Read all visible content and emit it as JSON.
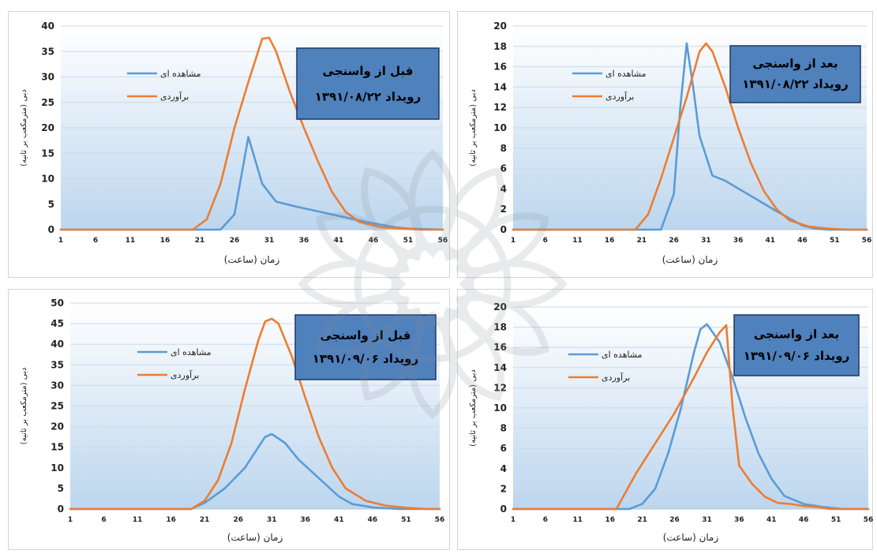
{
  "colors": {
    "observed": "#5b9bd5",
    "estimated": "#ed7d31",
    "title_box_fill": "#4f81bd",
    "title_box_border": "#1f3864",
    "plot_top": "#ffffff",
    "plot_bottom": "#bcd6ee",
    "grid": "#ccdaea",
    "axis_text": "#222222",
    "watermark": "#8a9099"
  },
  "chart_data": [
    {
      "type": "line",
      "title_lines": [
        "قبل از واسنجی",
        "رویداد ۱۳۹۱/۰۸/۲۲"
      ],
      "xlabel": "زمان (ساعت)",
      "ylabel": "دبی (مترمکعب بر ثانیه)",
      "x_ticks": [
        "1",
        "6",
        "11",
        "16",
        "21",
        "26",
        "31",
        "36",
        "41",
        "46",
        "51",
        "56"
      ],
      "xlim": [
        1,
        56
      ],
      "y_ticks": [
        "0",
        "5",
        "10",
        "15",
        "20",
        "25",
        "30",
        "35",
        "40"
      ],
      "ylim": [
        0,
        40
      ],
      "legend_position": "top-left",
      "series": [
        {
          "name": "مشاهده ای",
          "color_key": "observed",
          "x": [
            1,
            24,
            26,
            28,
            30,
            32,
            35,
            40,
            45,
            49,
            51,
            56
          ],
          "y": [
            0,
            0,
            3,
            18.2,
            9,
            5.5,
            4.5,
            3,
            1.5,
            0.5,
            0.2,
            0
          ]
        },
        {
          "name": "برآوردی",
          "color_key": "estimated",
          "x": [
            1,
            20,
            22,
            24,
            26,
            28,
            30,
            31,
            32,
            34,
            36,
            38,
            40,
            42,
            44,
            47,
            50,
            53,
            56
          ],
          "y": [
            0,
            0,
            2,
            9,
            20,
            29,
            37.5,
            37.7,
            35,
            27,
            20,
            13.5,
            7.5,
            3.5,
            1.5,
            0.5,
            0.2,
            0,
            0
          ]
        }
      ]
    },
    {
      "type": "line",
      "title_lines": [
        "بعد  از واسنجی",
        "رویداد ۱۳۹۱/۰۸/۲۲"
      ],
      "xlabel": "زمان (ساعت)",
      "ylabel": "دبی (مترمکعب بر ثانیه)",
      "x_ticks": [
        "1",
        "6",
        "11",
        "16",
        "21",
        "26",
        "31",
        "36",
        "41",
        "46",
        "51",
        "56"
      ],
      "xlim": [
        1,
        56
      ],
      "y_ticks": [
        "0",
        "2",
        "4",
        "6",
        "8",
        "10",
        "12",
        "14",
        "16",
        "18",
        "20"
      ],
      "ylim": [
        0,
        20
      ],
      "legend_position": "top-left",
      "series": [
        {
          "name": "مشاهده ای",
          "color_key": "observed",
          "x": [
            1,
            24,
            26,
            27,
            28,
            29,
            30,
            32,
            34,
            38,
            42,
            46,
            48,
            50,
            56
          ],
          "y": [
            0,
            0,
            3.5,
            12,
            18.3,
            14,
            9.2,
            5.3,
            4.8,
            3.3,
            1.8,
            0.4,
            0.1,
            0,
            0
          ]
        },
        {
          "name": "برآوردی",
          "color_key": "estimated",
          "x": [
            1,
            20,
            22,
            24,
            26,
            28,
            30,
            31,
            32,
            34,
            36,
            38,
            40,
            42,
            44,
            47,
            50,
            53,
            56
          ],
          "y": [
            0,
            0,
            1.5,
            5,
            9,
            13,
            17.5,
            18.3,
            17.5,
            14,
            10,
            6.5,
            3.8,
            2,
            0.9,
            0.3,
            0.1,
            0,
            0
          ]
        }
      ]
    },
    {
      "type": "line",
      "title_lines": [
        "قبل از واسنجی",
        "رویداد ۱۳۹۱/۰۹/۰۶"
      ],
      "xlabel": "زمان (ساعت)",
      "ylabel": "دبی (مترمکعب بر ثانیه)",
      "x_ticks": [
        "1",
        "6",
        "11",
        "16",
        "21",
        "26",
        "31",
        "36",
        "41",
        "46",
        "51",
        "56"
      ],
      "xlim": [
        1,
        56
      ],
      "y_ticks": [
        "0",
        "5",
        "10",
        "15",
        "20",
        "25",
        "30",
        "35",
        "40",
        "45",
        "50"
      ],
      "ylim": [
        0,
        50
      ],
      "legend_position": "top-left",
      "series": [
        {
          "name": "مشاهده ای",
          "color_key": "observed",
          "x": [
            1,
            19,
            21,
            24,
            27,
            29,
            30,
            31,
            33,
            35,
            38,
            41,
            43,
            46,
            48,
            50,
            56
          ],
          "y": [
            0,
            0,
            1.5,
            5,
            10,
            15,
            17.5,
            18.2,
            16,
            12,
            7.5,
            3,
            1.2,
            0.4,
            0.2,
            0,
            0
          ]
        },
        {
          "name": "برآوردی",
          "color_key": "estimated",
          "x": [
            1,
            19,
            21,
            23,
            25,
            27,
            29,
            30,
            31,
            32,
            34,
            36,
            38,
            40,
            42,
            45,
            48,
            51,
            54,
            56
          ],
          "y": [
            0,
            0,
            2,
            7,
            16,
            29,
            41,
            45.5,
            46.2,
            45,
            37,
            27,
            17.5,
            10,
            5,
            2,
            0.8,
            0.3,
            0,
            0
          ]
        }
      ]
    },
    {
      "type": "line",
      "title_lines": [
        "بعد از واسنجی",
        "رویداد ۱۳۹۱/۰۹/۰۶"
      ],
      "xlabel": "زمان (ساعت)",
      "ylabel": "دبی (مترمکعب بر ثانیه)",
      "x_ticks": [
        "1",
        "6",
        "11",
        "16",
        "21",
        "26",
        "31",
        "36",
        "41",
        "46",
        "51",
        "56"
      ],
      "xlim": [
        1,
        56
      ],
      "y_ticks": [
        "0",
        "2",
        "4",
        "6",
        "8",
        "10",
        "12",
        "14",
        "16",
        "18",
        "20"
      ],
      "ylim": [
        0,
        20
      ],
      "legend_position": "top-left",
      "series": [
        {
          "name": "مشاهده ای",
          "color_key": "observed",
          "x": [
            1,
            19,
            21,
            23,
            25,
            27,
            29,
            30,
            31,
            33,
            35,
            37,
            39,
            41,
            43,
            46,
            49,
            52,
            56
          ],
          "y": [
            0,
            0,
            0.5,
            2,
            5.5,
            10,
            15.5,
            17.8,
            18.3,
            16.5,
            13,
            9,
            5.5,
            3,
            1.3,
            0.5,
            0.2,
            0,
            0
          ]
        },
        {
          "name": "برآوردی",
          "color_key": "estimated",
          "x": [
            1,
            17,
            20,
            23,
            26,
            29,
            31,
            33,
            34,
            35,
            36,
            38,
            40,
            42,
            44,
            46,
            48,
            50,
            52,
            56
          ],
          "y": [
            0,
            0,
            3.5,
            6.5,
            9.5,
            13,
            15.5,
            17.5,
            18.2,
            10,
            4.3,
            2.5,
            1.2,
            0.6,
            0.5,
            0.3,
            0.2,
            0,
            0,
            0
          ]
        }
      ]
    }
  ]
}
